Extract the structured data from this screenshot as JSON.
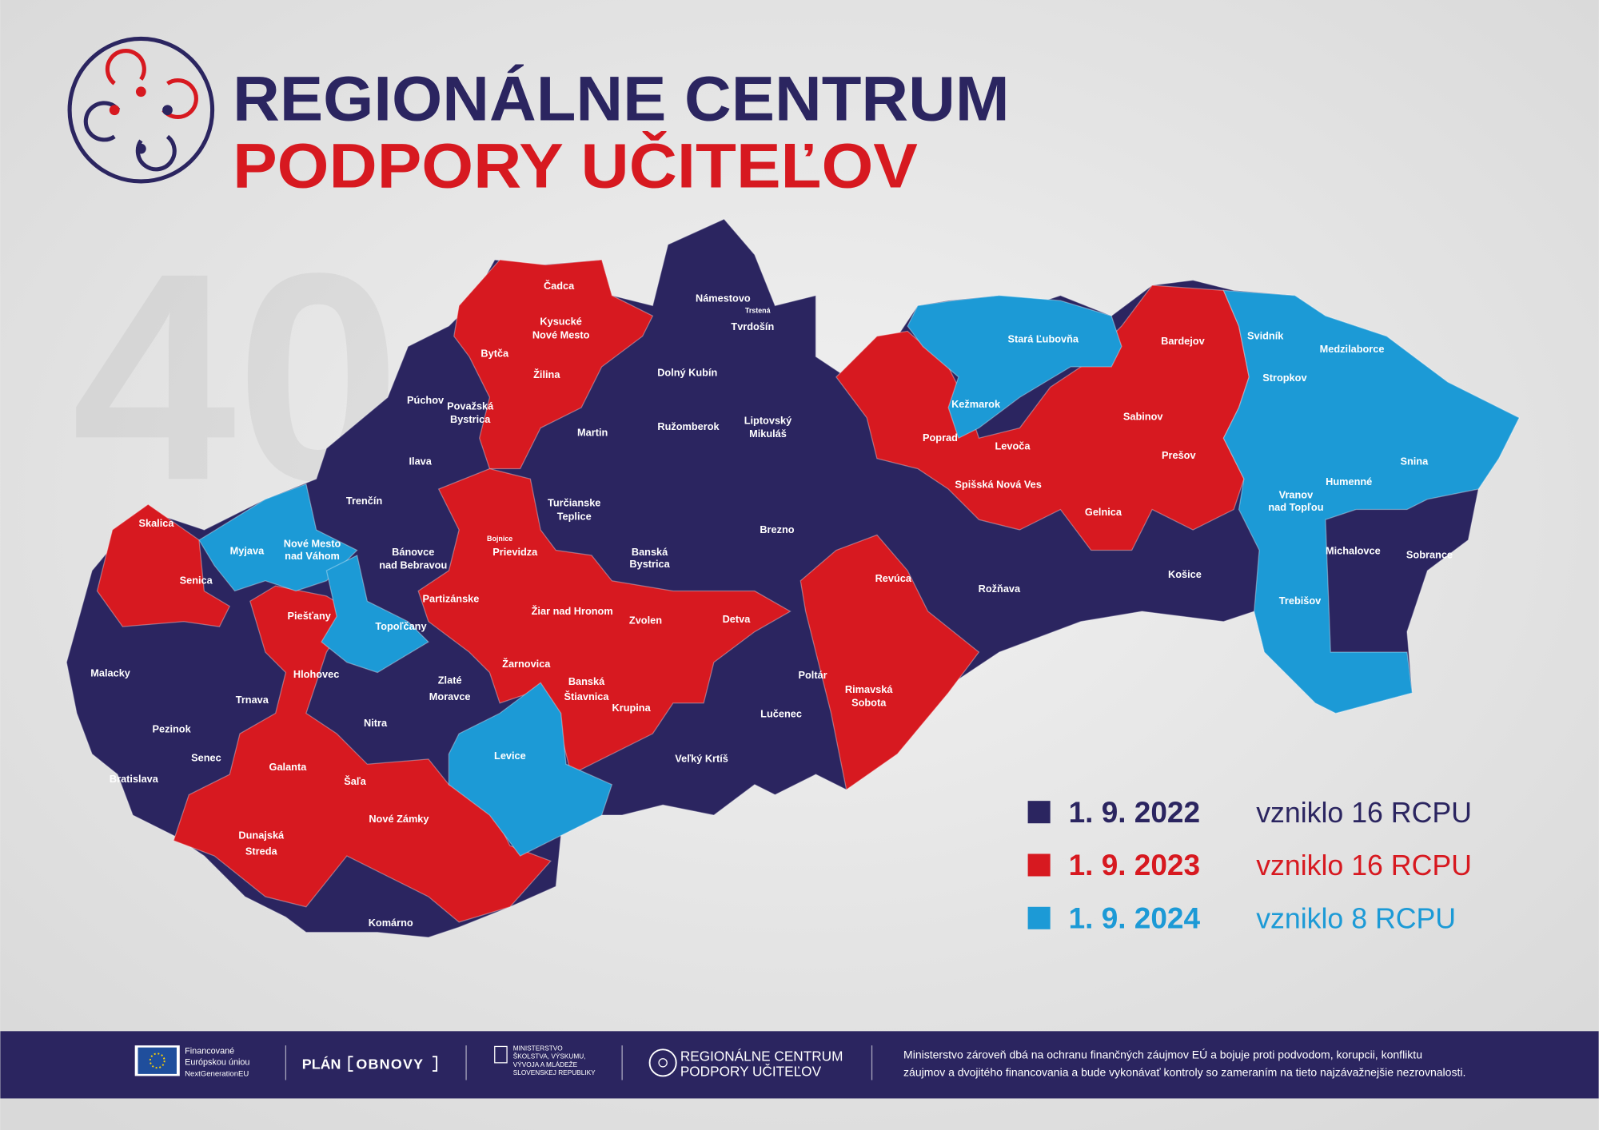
{
  "header": {
    "title_line1": "REGIONÁLNE CENTRUM",
    "title_line2": "PODPORY UČITEĽOV",
    "background_number": "40"
  },
  "legend": [
    {
      "date": "1. 9. 2022",
      "text": "vzniklo 16 RCPU",
      "color": "#2b2560"
    },
    {
      "date": "1. 9. 2023",
      "text": "vzniklo 16 RCPU",
      "color": "#d71920"
    },
    {
      "date": "1. 9. 2024",
      "text": "vzniklo 8 RCPU",
      "color": "#1c9ad6"
    }
  ],
  "districts": [
    [
      "Čadca"
    ],
    [
      "Kysucké",
      "Nové Mesto"
    ],
    [
      "Bytča"
    ],
    [
      "Žilina"
    ],
    [
      "Námestovo"
    ],
    [
      "Trstená"
    ],
    [
      "Tvrdošín"
    ],
    [
      "Dolný Kubín"
    ],
    [
      "Púchov"
    ],
    [
      "Považská",
      "Bystrica"
    ],
    [
      "Martin"
    ],
    [
      "Ružomberok"
    ],
    [
      "Liptovský",
      "Mikuláš"
    ],
    [
      "Ilava"
    ],
    [
      "Trenčín"
    ],
    [
      "Turčianske",
      "Teplice"
    ],
    [
      "Bojnice"
    ],
    [
      "Prievidza"
    ],
    [
      "Banská",
      "Bystrica"
    ],
    [
      "Brezno"
    ],
    [
      "Skalica"
    ],
    [
      "Myjava"
    ],
    [
      "Nové Mesto",
      "nad Váhom"
    ],
    [
      "Bánovce",
      "nad Bebravou"
    ],
    [
      "Senica"
    ],
    [
      "Partizánske"
    ],
    [
      "Topoľčany"
    ],
    [
      "Piešťany"
    ],
    [
      "Žiar nad Hronom"
    ],
    [
      "Zvolen"
    ],
    [
      "Detva"
    ],
    [
      "Revúca"
    ],
    [
      "Rožňava"
    ],
    [
      "Malacky"
    ],
    [
      "Trnava"
    ],
    [
      "Hlohovec"
    ],
    [
      "Zlaté",
      "Moravce"
    ],
    [
      "Žarnovica"
    ],
    [
      "Banská",
      "Štiavnica"
    ],
    [
      "Krupina"
    ],
    [
      "Poltár"
    ],
    [
      "Rimavská",
      "Sobota"
    ],
    [
      "Lučenec"
    ],
    [
      "Nitra"
    ],
    [
      "Pezinok"
    ],
    [
      "Senec"
    ],
    [
      "Levice"
    ],
    [
      "Veľký Krtíš"
    ],
    [
      "Bratislava"
    ],
    [
      "Galanta"
    ],
    [
      "Šaľa"
    ],
    [
      "Nové Zámky"
    ],
    [
      "Dunajská",
      "Streda"
    ],
    [
      "Komárno"
    ],
    [
      "Stará Ľubovňa"
    ],
    [
      "Bardejov"
    ],
    [
      "Svidník"
    ],
    [
      "Medzilaborce"
    ],
    [
      "Stropkov"
    ],
    [
      "Kežmarok"
    ],
    [
      "Sabinov"
    ],
    [
      "Poprad"
    ],
    [
      "Levoča"
    ],
    [
      "Prešov"
    ],
    [
      "Snina"
    ],
    [
      "Humenné"
    ],
    [
      "Spišská Nová Ves"
    ],
    [
      "Vranov",
      "nad Topľou"
    ],
    [
      "Gelnica"
    ],
    [
      "Michalovce"
    ],
    [
      "Sobrance"
    ],
    [
      "Košice"
    ],
    [
      "Trebišov"
    ]
  ],
  "footer": {
    "eu": [
      "Financované",
      "Európskou úniou",
      "NextGenerationEU"
    ],
    "plan": [
      "PLÁN",
      "OBNOVY"
    ],
    "ministry": [
      "MINISTERSTVO",
      "ŠKOLSTVA, VÝSKUMU,",
      "VÝVOJA A MLÁDEŽE",
      "SLOVENSKEJ REPUBLIKY"
    ],
    "rcpu": [
      "REGIONÁLNE CENTRUM",
      "PODPORY UČITEĽOV"
    ],
    "disclaimer": [
      "Ministerstvo zároveň dbá na  ochranu finančných záujmov EÚ a bojuje proti podvodom, korupcii, konfliktu",
      "záujmov a dvojitého financovania a bude vykonávať kontroly so zameraním na tieto najzávažnejšie nezrovnalosti."
    ]
  }
}
